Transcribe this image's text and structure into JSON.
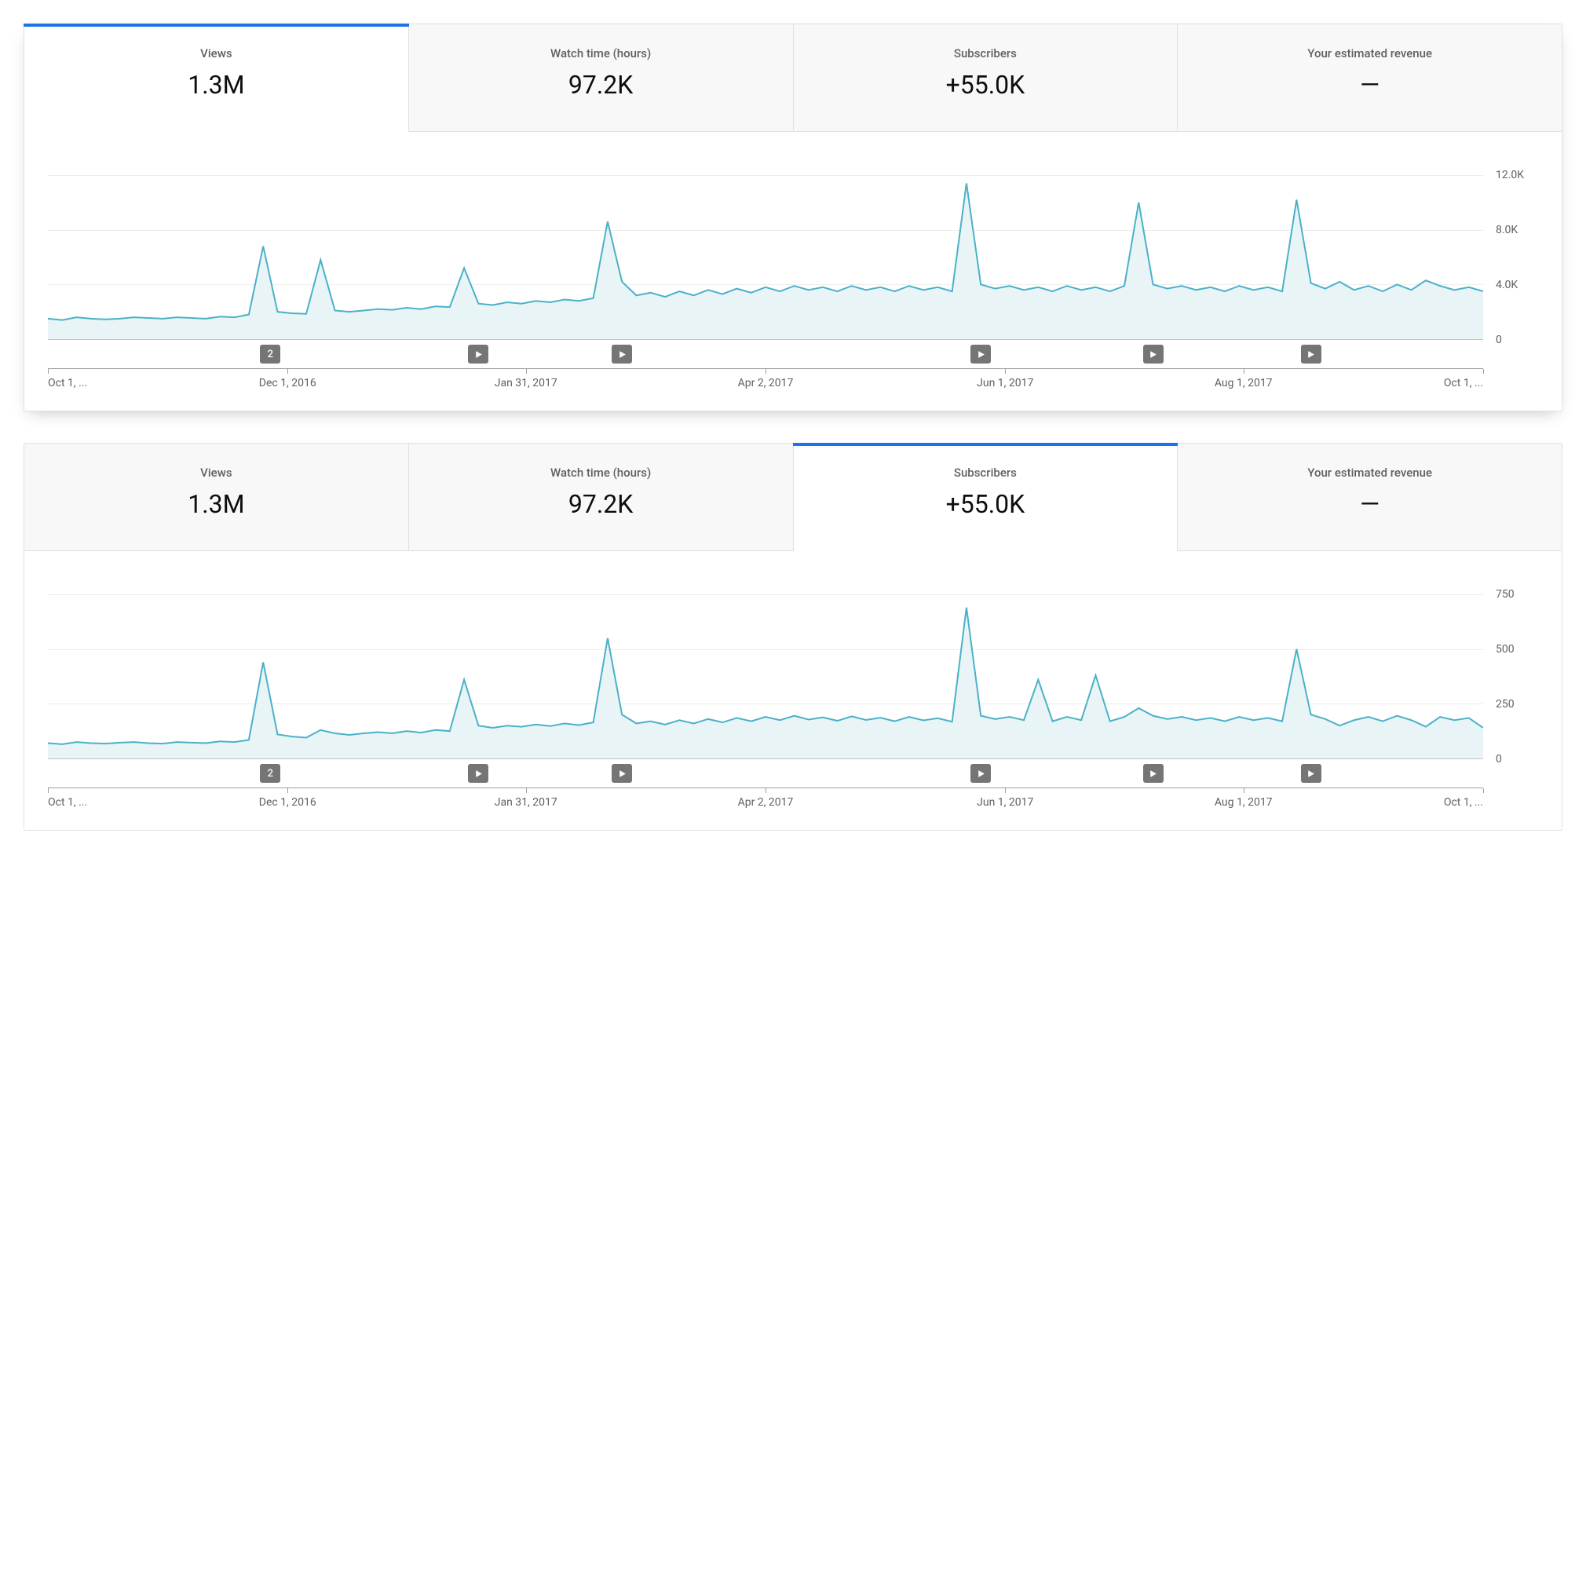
{
  "colors": {
    "accent": "#1a73e8",
    "line": "#4bb1c7",
    "fill": "#e9f4f7",
    "grid": "#ececec",
    "axis": "#9e9e9e",
    "text_muted": "#606060",
    "marker_bg": "#757575",
    "tab_inactive_bg": "#f8f8f8",
    "border": "#e0e0e0"
  },
  "tabs": [
    {
      "label": "Views",
      "value": "1.3M"
    },
    {
      "label": "Watch time (hours)",
      "value": "97.2K"
    },
    {
      "label": "Subscribers",
      "value": "+55.0K"
    },
    {
      "label": "Your estimated revenue",
      "value": "—"
    }
  ],
  "x_axis": {
    "ticks_pct": [
      0,
      16.7,
      33.3,
      50,
      66.7,
      83.3,
      100
    ],
    "labels": [
      {
        "text": "Oct 1, ...",
        "pct": 0,
        "align": "left"
      },
      {
        "text": "Dec 1, 2016",
        "pct": 16.7,
        "align": "center"
      },
      {
        "text": "Jan 31, 2017",
        "pct": 33.3,
        "align": "center"
      },
      {
        "text": "Apr 2, 2017",
        "pct": 50,
        "align": "center"
      },
      {
        "text": "Jun 1, 2017",
        "pct": 66.7,
        "align": "center"
      },
      {
        "text": "Aug 1, 2017",
        "pct": 83.3,
        "align": "center"
      },
      {
        "text": "Oct 1, ...",
        "pct": 100,
        "align": "right"
      }
    ]
  },
  "markers": [
    {
      "pct": 15.5,
      "type": "count",
      "label": "2"
    },
    {
      "pct": 30.0,
      "type": "play"
    },
    {
      "pct": 40.0,
      "type": "play"
    },
    {
      "pct": 65.0,
      "type": "play"
    },
    {
      "pct": 77.0,
      "type": "play"
    },
    {
      "pct": 88.0,
      "type": "play"
    }
  ],
  "panels": [
    {
      "id": "views",
      "active_tab": 0,
      "shadow": true,
      "chart": {
        "type": "area",
        "ylim": [
          0,
          12000
        ],
        "y_ticks": [
          {
            "v": 0,
            "label": "0"
          },
          {
            "v": 4000,
            "label": "4.0K"
          },
          {
            "v": 8000,
            "label": "8.0K"
          },
          {
            "v": 12000,
            "label": "12.0K"
          }
        ],
        "line_color": "#4bb1c7",
        "fill_color": "#e9f4f7",
        "line_width": 2,
        "series": [
          [
            0,
            1500
          ],
          [
            1,
            1400
          ],
          [
            2,
            1600
          ],
          [
            3,
            1500
          ],
          [
            4,
            1450
          ],
          [
            5,
            1500
          ],
          [
            6,
            1600
          ],
          [
            7,
            1550
          ],
          [
            8,
            1500
          ],
          [
            9,
            1600
          ],
          [
            10,
            1550
          ],
          [
            11,
            1500
          ],
          [
            12,
            1650
          ],
          [
            13,
            1600
          ],
          [
            14,
            1800
          ],
          [
            15,
            6800
          ],
          [
            16,
            2000
          ],
          [
            17,
            1900
          ],
          [
            18,
            1850
          ],
          [
            19,
            5800
          ],
          [
            20,
            2100
          ],
          [
            21,
            2000
          ],
          [
            22,
            2100
          ],
          [
            23,
            2200
          ],
          [
            24,
            2150
          ],
          [
            25,
            2300
          ],
          [
            26,
            2200
          ],
          [
            27,
            2400
          ],
          [
            28,
            2350
          ],
          [
            29,
            5200
          ],
          [
            30,
            2600
          ],
          [
            31,
            2500
          ],
          [
            32,
            2700
          ],
          [
            33,
            2600
          ],
          [
            34,
            2800
          ],
          [
            35,
            2700
          ],
          [
            36,
            2900
          ],
          [
            37,
            2800
          ],
          [
            38,
            3000
          ],
          [
            39,
            8600
          ],
          [
            40,
            4200
          ],
          [
            41,
            3200
          ],
          [
            42,
            3400
          ],
          [
            43,
            3100
          ],
          [
            44,
            3500
          ],
          [
            45,
            3200
          ],
          [
            46,
            3600
          ],
          [
            47,
            3300
          ],
          [
            48,
            3700
          ],
          [
            49,
            3400
          ],
          [
            50,
            3800
          ],
          [
            51,
            3500
          ],
          [
            52,
            3900
          ],
          [
            53,
            3600
          ],
          [
            54,
            3800
          ],
          [
            55,
            3500
          ],
          [
            56,
            3900
          ],
          [
            57,
            3600
          ],
          [
            58,
            3800
          ],
          [
            59,
            3500
          ],
          [
            60,
            3900
          ],
          [
            61,
            3600
          ],
          [
            62,
            3800
          ],
          [
            63,
            3500
          ],
          [
            64,
            11400
          ],
          [
            65,
            4000
          ],
          [
            66,
            3700
          ],
          [
            67,
            3900
          ],
          [
            68,
            3600
          ],
          [
            69,
            3800
          ],
          [
            70,
            3500
          ],
          [
            71,
            3900
          ],
          [
            72,
            3600
          ],
          [
            73,
            3800
          ],
          [
            74,
            3500
          ],
          [
            75,
            3900
          ],
          [
            76,
            10000
          ],
          [
            77,
            4000
          ],
          [
            78,
            3700
          ],
          [
            79,
            3900
          ],
          [
            80,
            3600
          ],
          [
            81,
            3800
          ],
          [
            82,
            3500
          ],
          [
            83,
            3900
          ],
          [
            84,
            3600
          ],
          [
            85,
            3800
          ],
          [
            86,
            3500
          ],
          [
            87,
            10200
          ],
          [
            88,
            4100
          ],
          [
            89,
            3700
          ],
          [
            90,
            4200
          ],
          [
            91,
            3600
          ],
          [
            92,
            3900
          ],
          [
            93,
            3500
          ],
          [
            94,
            4000
          ],
          [
            95,
            3600
          ],
          [
            96,
            4300
          ],
          [
            97,
            3900
          ],
          [
            98,
            3600
          ],
          [
            99,
            3800
          ],
          [
            100,
            3500
          ]
        ]
      }
    },
    {
      "id": "subscribers",
      "active_tab": 2,
      "shadow": false,
      "chart": {
        "type": "area",
        "ylim": [
          0,
          750
        ],
        "y_ticks": [
          {
            "v": 0,
            "label": "0"
          },
          {
            "v": 250,
            "label": "250"
          },
          {
            "v": 500,
            "label": "500"
          },
          {
            "v": 750,
            "label": "750"
          }
        ],
        "line_color": "#4bb1c7",
        "fill_color": "#e9f4f7",
        "line_width": 2,
        "series": [
          [
            0,
            70
          ],
          [
            1,
            65
          ],
          [
            2,
            75
          ],
          [
            3,
            70
          ],
          [
            4,
            68
          ],
          [
            5,
            72
          ],
          [
            6,
            75
          ],
          [
            7,
            70
          ],
          [
            8,
            68
          ],
          [
            9,
            75
          ],
          [
            10,
            72
          ],
          [
            11,
            70
          ],
          [
            12,
            78
          ],
          [
            13,
            75
          ],
          [
            14,
            85
          ],
          [
            15,
            440
          ],
          [
            16,
            110
          ],
          [
            17,
            100
          ],
          [
            18,
            95
          ],
          [
            19,
            130
          ],
          [
            20,
            115
          ],
          [
            21,
            108
          ],
          [
            22,
            115
          ],
          [
            23,
            120
          ],
          [
            24,
            115
          ],
          [
            25,
            125
          ],
          [
            26,
            118
          ],
          [
            27,
            130
          ],
          [
            28,
            125
          ],
          [
            29,
            360
          ],
          [
            30,
            150
          ],
          [
            31,
            140
          ],
          [
            32,
            150
          ],
          [
            33,
            145
          ],
          [
            34,
            155
          ],
          [
            35,
            148
          ],
          [
            36,
            160
          ],
          [
            37,
            152
          ],
          [
            38,
            165
          ],
          [
            39,
            550
          ],
          [
            40,
            200
          ],
          [
            41,
            160
          ],
          [
            42,
            170
          ],
          [
            43,
            155
          ],
          [
            44,
            175
          ],
          [
            45,
            160
          ],
          [
            46,
            180
          ],
          [
            47,
            165
          ],
          [
            48,
            185
          ],
          [
            49,
            170
          ],
          [
            50,
            190
          ],
          [
            51,
            175
          ],
          [
            52,
            195
          ],
          [
            53,
            178
          ],
          [
            54,
            188
          ],
          [
            55,
            172
          ],
          [
            56,
            192
          ],
          [
            57,
            176
          ],
          [
            58,
            186
          ],
          [
            59,
            170
          ],
          [
            60,
            190
          ],
          [
            61,
            174
          ],
          [
            62,
            184
          ],
          [
            63,
            168
          ],
          [
            64,
            690
          ],
          [
            65,
            195
          ],
          [
            66,
            180
          ],
          [
            67,
            190
          ],
          [
            68,
            175
          ],
          [
            69,
            360
          ],
          [
            70,
            170
          ],
          [
            71,
            190
          ],
          [
            72,
            175
          ],
          [
            73,
            380
          ],
          [
            74,
            170
          ],
          [
            75,
            190
          ],
          [
            76,
            230
          ],
          [
            77,
            195
          ],
          [
            78,
            180
          ],
          [
            79,
            190
          ],
          [
            80,
            175
          ],
          [
            81,
            185
          ],
          [
            82,
            170
          ],
          [
            83,
            190
          ],
          [
            84,
            175
          ],
          [
            85,
            185
          ],
          [
            86,
            170
          ],
          [
            87,
            500
          ],
          [
            88,
            200
          ],
          [
            89,
            180
          ],
          [
            90,
            150
          ],
          [
            91,
            175
          ],
          [
            92,
            190
          ],
          [
            93,
            170
          ],
          [
            94,
            195
          ],
          [
            95,
            175
          ],
          [
            96,
            145
          ],
          [
            97,
            190
          ],
          [
            98,
            175
          ],
          [
            99,
            185
          ],
          [
            100,
            140
          ]
        ]
      }
    }
  ]
}
